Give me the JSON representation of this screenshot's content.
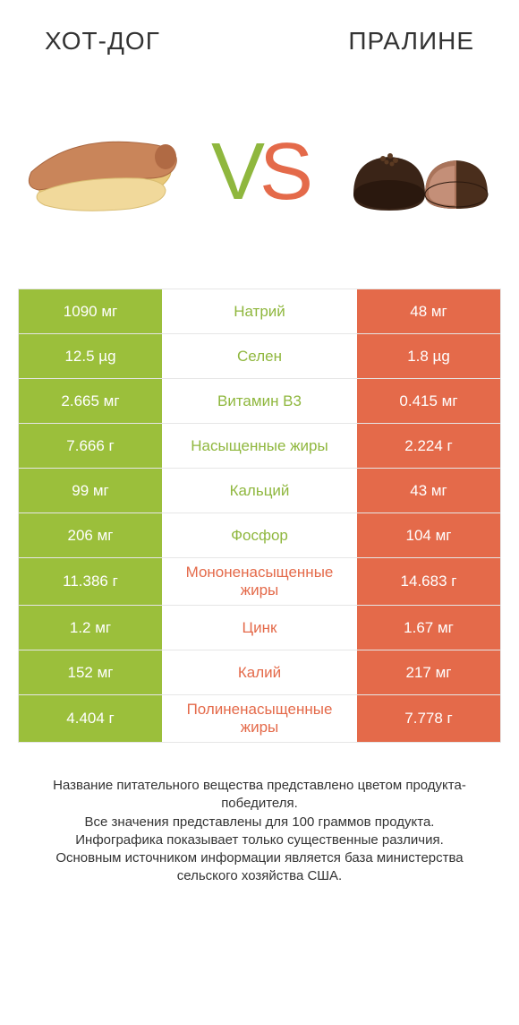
{
  "colors": {
    "left_bar": "#9bbf3b",
    "right_bar": "#e46a4a",
    "left_label": "#8fb73e",
    "right_label": "#e46a4a",
    "background": "#ffffff",
    "border": "#e6e6e6",
    "text": "#333333"
  },
  "titles": {
    "left": "ХОТ-ДОГ",
    "right": "ПРАЛИНЕ"
  },
  "vs": {
    "v": "V",
    "s": "S"
  },
  "rows": [
    {
      "label": "Натрий",
      "left": "1090 мг",
      "right": "48 мг",
      "winner": "left"
    },
    {
      "label": "Селен",
      "left": "12.5 µg",
      "right": "1.8 µg",
      "winner": "left"
    },
    {
      "label": "Витамин B3",
      "left": "2.665 мг",
      "right": "0.415 мг",
      "winner": "left"
    },
    {
      "label": "Насыщенные жиры",
      "left": "7.666 г",
      "right": "2.224 г",
      "winner": "left"
    },
    {
      "label": "Кальций",
      "left": "99 мг",
      "right": "43 мг",
      "winner": "left"
    },
    {
      "label": "Фосфор",
      "left": "206 мг",
      "right": "104 мг",
      "winner": "left"
    },
    {
      "label": "Мононенасыщенные жиры",
      "left": "11.386 г",
      "right": "14.683 г",
      "winner": "right"
    },
    {
      "label": "Цинк",
      "left": "1.2 мг",
      "right": "1.67 мг",
      "winner": "right"
    },
    {
      "label": "Калий",
      "left": "152 мг",
      "right": "217 мг",
      "winner": "right"
    },
    {
      "label": "Полиненасыщенные жиры",
      "left": "4.404 г",
      "right": "7.778 г",
      "winner": "right"
    }
  ],
  "footer": {
    "line1": "Название питательного вещества представлено цветом продукта-победителя.",
    "line2": "Все значения представлены для 100 граммов продукта.",
    "line3": "Инфографика показывает только существенные различия.",
    "line4": "Основным источником информации является база министерства сельского хозяйства США."
  }
}
